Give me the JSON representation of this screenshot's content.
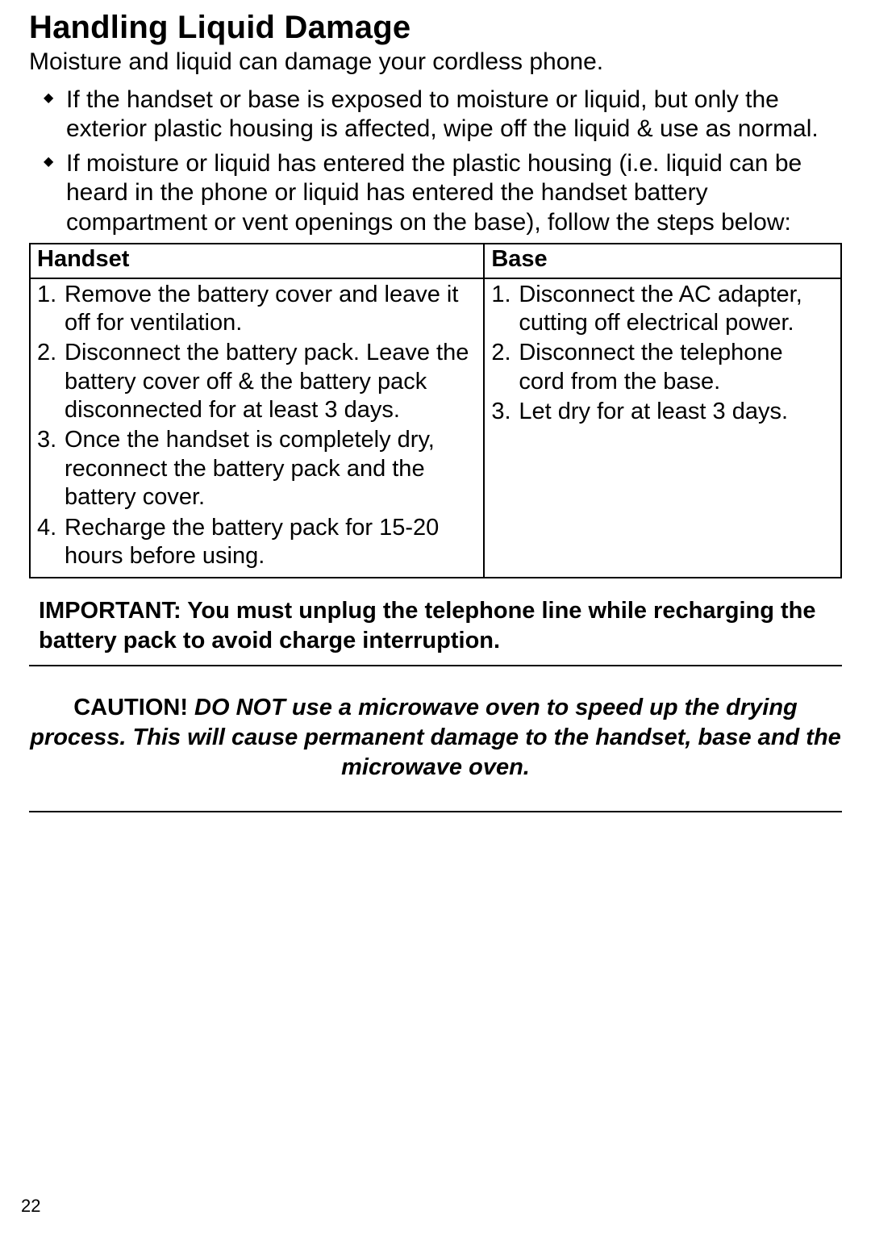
{
  "title": "Handling Liquid Damage",
  "intro": "Moisture and liquid can damage your cordless phone.",
  "bullets": [
    "If the handset or base is exposed to moisture or liquid, but only the exterior plastic housing is affected, wipe off the liquid & use as normal.",
    "If moisture or liquid has entered the plastic housing (i.e. liquid can be heard in the phone or liquid has entered the handset battery compartment or vent openings on the base), follow the steps below:"
  ],
  "table": {
    "headers": {
      "left": "Handset",
      "right": "Base"
    },
    "handset_steps": [
      "Remove the battery cover and leave it off for ventilation.",
      "Disconnect the battery pack. Leave the battery cover off & the battery pack disconnected for at least 3 days.",
      "Once the handset is completely dry, reconnect the battery pack and the battery cover.",
      "Recharge the battery pack for 15-20 hours before using."
    ],
    "base_steps": [
      "Disconnect the AC adapter, cutting off electrical power.",
      "Disconnect the telephone cord from the base.",
      "Let dry for at least 3 days."
    ]
  },
  "important": "IMPORTANT: You must unplug the telephone line while recharging the battery pack to avoid charge interruption.",
  "caution_lead": "CAUTION! ",
  "caution_ital": "DO NOT use a microwave oven to speed up the drying process. This will cause permanent damage to the handset, base and the microwave oven.",
  "page_number": "22"
}
